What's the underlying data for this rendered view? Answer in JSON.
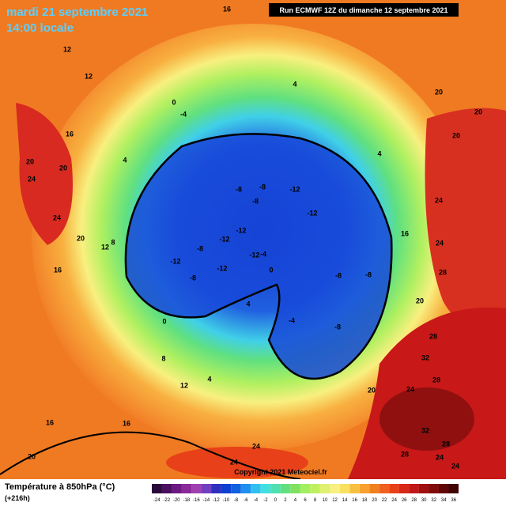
{
  "header": {
    "date": "mardi 21 septembre 2021",
    "time": "14:00 locale",
    "run": "Run ECMWF 12Z du dimanche 12 septembre 2021"
  },
  "map": {
    "contour_labels": [
      16,
      12,
      12,
      4,
      0,
      -4,
      4,
      20,
      20,
      20,
      16,
      20,
      20,
      24,
      24,
      20,
      16,
      12,
      8,
      4,
      -8,
      -8,
      -12,
      -12,
      -8,
      -12,
      -12,
      -12,
      -12,
      -8,
      -12,
      -8,
      -4,
      0,
      -8,
      -8,
      -8,
      -4,
      0,
      4,
      24,
      24,
      28,
      20,
      28,
      32,
      28,
      24,
      20,
      24,
      28,
      32,
      24,
      28,
      24,
      24,
      16,
      16,
      12,
      4,
      8,
      16,
      20
    ],
    "copyright": "Copyright 2021 Meteociel.fr"
  },
  "legend": {
    "title": "Température à 850hPa (°C)",
    "subtitle": "(+216h)",
    "ticks": [
      -24,
      -22,
      -20,
      -18,
      -16,
      -14,
      -12,
      -10,
      -8,
      -6,
      -4,
      -2,
      0,
      2,
      4,
      6,
      8,
      10,
      12,
      14,
      16,
      18,
      20,
      22,
      24,
      26,
      28,
      30,
      32,
      34,
      36
    ],
    "colors": [
      "#2a0a3a",
      "#4a1060",
      "#6a1a80",
      "#8a2a9a",
      "#a040b0",
      "#7040c0",
      "#3030c0",
      "#1040d0",
      "#1060e0",
      "#2090f0",
      "#30c0f0",
      "#40e0e0",
      "#50e0b0",
      "#60e080",
      "#80e060",
      "#a0f060",
      "#c0f060",
      "#e0f070",
      "#f8f080",
      "#f8e060",
      "#f8c040",
      "#f8a030",
      "#f08020",
      "#f06020",
      "#e84018",
      "#d82818",
      "#c01818",
      "#a01010",
      "#800c0c",
      "#600808",
      "#400404"
    ]
  }
}
